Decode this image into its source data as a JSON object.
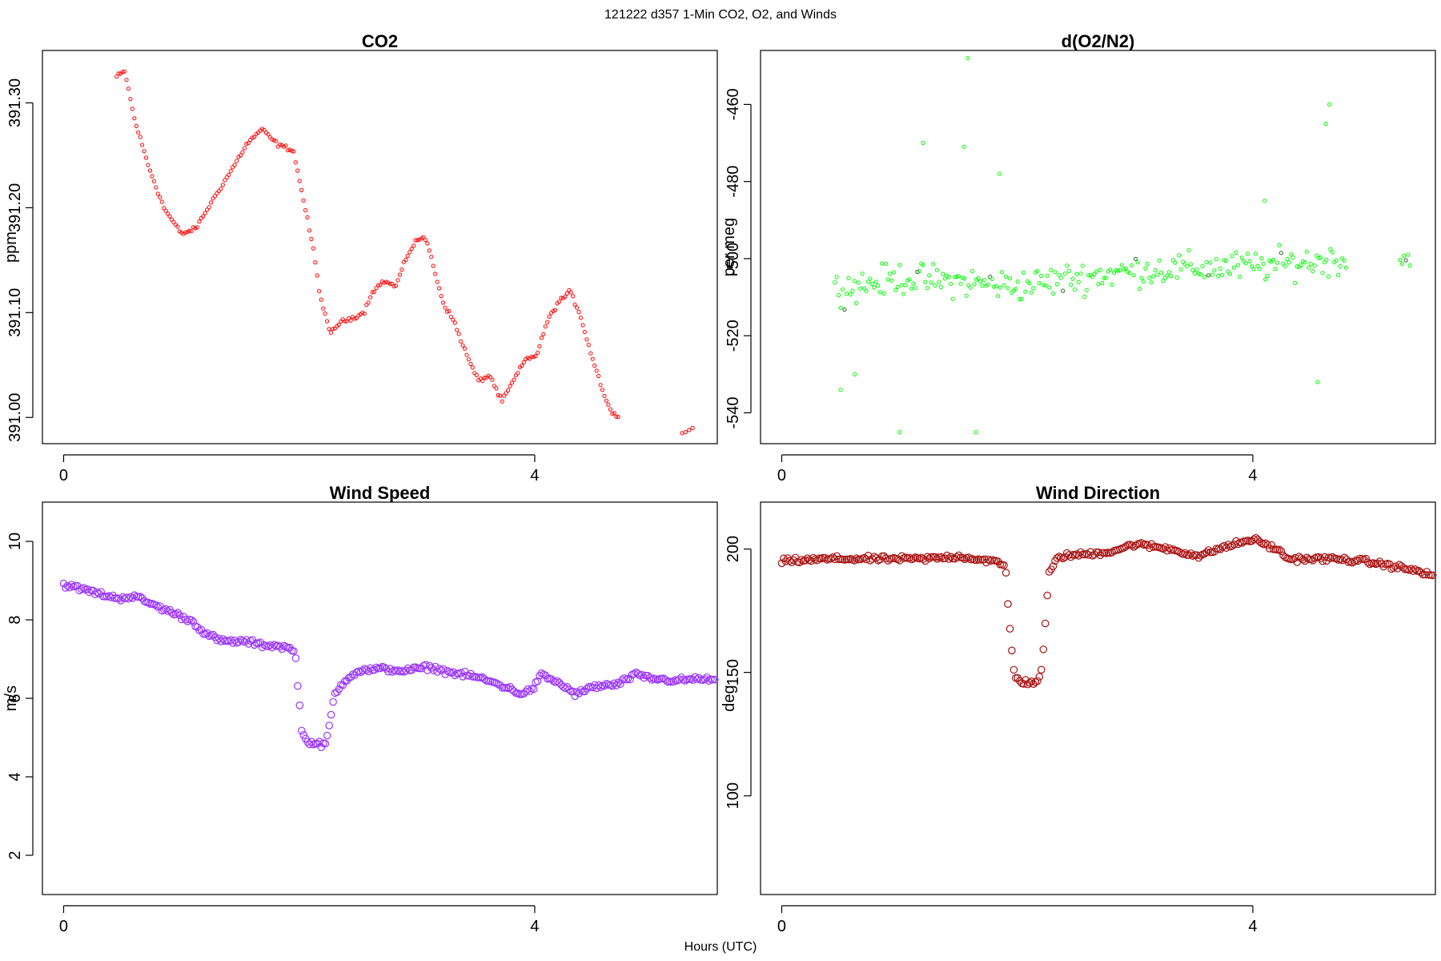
{
  "figure": {
    "suptitle": "121222   d357   1-Min CO2, O2, and Winds",
    "xlabel": "Hours (UTC)"
  },
  "chart_data": [
    {
      "id": "co2",
      "type": "scatter",
      "title": "CO2",
      "ylabel": "ppm",
      "color": "#ff0000",
      "marker": "small-circle",
      "xlim": [
        -0.18,
        5.55
      ],
      "ylim": [
        390.975,
        391.35
      ],
      "xticks": [
        0,
        4
      ],
      "yticks": [
        391.0,
        391.1,
        391.2,
        391.3
      ],
      "ytick_labels": [
        "391.00",
        "391.10",
        "391.20",
        "391.30"
      ],
      "anchors": [
        [
          0.45,
          391.325
        ],
        [
          0.52,
          391.33
        ],
        [
          0.6,
          391.285
        ],
        [
          0.72,
          391.24
        ],
        [
          0.85,
          391.2
        ],
        [
          1.0,
          391.175
        ],
        [
          1.12,
          391.18
        ],
        [
          1.28,
          391.21
        ],
        [
          1.42,
          391.235
        ],
        [
          1.55,
          391.26
        ],
        [
          1.68,
          391.275
        ],
        [
          1.82,
          391.26
        ],
        [
          1.95,
          391.255
        ],
        [
          2.05,
          391.2
        ],
        [
          2.12,
          391.16
        ],
        [
          2.18,
          391.115
        ],
        [
          2.26,
          391.08
        ],
        [
          2.34,
          391.09
        ],
        [
          2.45,
          391.095
        ],
        [
          2.55,
          391.1
        ],
        [
          2.62,
          391.12
        ],
        [
          2.72,
          391.13
        ],
        [
          2.82,
          391.125
        ],
        [
          2.92,
          391.155
        ],
        [
          3.0,
          391.17
        ],
        [
          3.08,
          391.17
        ],
        [
          3.15,
          391.14
        ],
        [
          3.22,
          391.11
        ],
        [
          3.32,
          391.09
        ],
        [
          3.42,
          391.06
        ],
        [
          3.52,
          391.035
        ],
        [
          3.62,
          391.04
        ],
        [
          3.72,
          391.015
        ],
        [
          3.82,
          391.035
        ],
        [
          3.92,
          391.055
        ],
        [
          4.02,
          391.06
        ],
        [
          4.1,
          391.09
        ],
        [
          4.2,
          391.11
        ],
        [
          4.3,
          391.12
        ],
        [
          4.38,
          391.1
        ],
        [
          4.48,
          391.06
        ],
        [
          4.58,
          391.025
        ],
        [
          4.65,
          391.005
        ],
        [
          4.72,
          391.0
        ]
      ],
      "segments": [
        [
          0.45,
          4.72
        ],
        [
          5.25,
          5.35
        ]
      ],
      "gap_points": [
        [
          5.25,
          390.985
        ],
        [
          5.28,
          390.986
        ],
        [
          5.31,
          390.988
        ],
        [
          5.34,
          390.99
        ]
      ],
      "step": 0.0167,
      "noise": 0.003
    },
    {
      "id": "o2",
      "type": "scatter",
      "title": "d(O2/N2)",
      "ylabel": "per meg",
      "color": "#00ff00",
      "marker": "small-circle",
      "xlim": [
        -0.18,
        5.55
      ],
      "ylim": [
        -548,
        -446
      ],
      "xticks": [
        0,
        4
      ],
      "yticks": [
        -540,
        -520,
        -500,
        -480,
        -460
      ],
      "ytick_labels": [
        "-540",
        "-520",
        "-500",
        "-480",
        "-460"
      ],
      "anchors": [
        [
          0.45,
          -508
        ],
        [
          1.0,
          -505
        ],
        [
          2.0,
          -507
        ],
        [
          3.0,
          -503
        ],
        [
          4.0,
          -502
        ],
        [
          4.8,
          -500
        ]
      ],
      "segments": [
        [
          0.45,
          4.8
        ],
        [
          5.25,
          5.35
        ]
      ],
      "step": 0.0167,
      "noise": 6,
      "outliers": [
        [
          1.58,
          -448
        ],
        [
          1.55,
          -471
        ],
        [
          1.2,
          -470
        ],
        [
          1.65,
          -545
        ],
        [
          1.0,
          -545
        ],
        [
          4.65,
          -460
        ],
        [
          4.62,
          -465
        ],
        [
          4.55,
          -532
        ],
        [
          0.5,
          -534
        ],
        [
          0.62,
          -530
        ],
        [
          1.85,
          -478
        ],
        [
          4.1,
          -485
        ]
      ]
    },
    {
      "id": "wind-speed",
      "type": "scatter",
      "title": "Wind Speed",
      "ylabel": "m/s",
      "color": "#9933ff",
      "marker": "circle",
      "xlim": [
        -0.18,
        5.55
      ],
      "ylim": [
        1.0,
        11.0
      ],
      "xticks": [
        0,
        4
      ],
      "yticks": [
        2,
        4,
        6,
        8,
        10
      ],
      "ytick_labels": [
        "2",
        "4",
        "6",
        "8",
        "10"
      ],
      "anchors": [
        [
          0.0,
          8.9
        ],
        [
          0.2,
          8.75
        ],
        [
          0.45,
          8.55
        ],
        [
          0.6,
          8.6
        ],
        [
          0.75,
          8.4
        ],
        [
          0.95,
          8.15
        ],
        [
          1.1,
          7.95
        ],
        [
          1.2,
          7.65
        ],
        [
          1.35,
          7.45
        ],
        [
          1.55,
          7.45
        ],
        [
          1.7,
          7.35
        ],
        [
          1.8,
          7.35
        ],
        [
          1.95,
          7.25
        ],
        [
          1.97,
          7.0
        ],
        [
          1.99,
          6.3
        ],
        [
          2.02,
          5.2
        ],
        [
          2.05,
          4.95
        ],
        [
          2.12,
          4.85
        ],
        [
          2.22,
          4.8
        ],
        [
          2.25,
          5.2
        ],
        [
          2.3,
          6.1
        ],
        [
          2.4,
          6.5
        ],
        [
          2.5,
          6.7
        ],
        [
          2.7,
          6.75
        ],
        [
          2.9,
          6.7
        ],
        [
          3.1,
          6.8
        ],
        [
          3.3,
          6.65
        ],
        [
          3.5,
          6.55
        ],
        [
          3.7,
          6.35
        ],
        [
          3.9,
          6.1
        ],
        [
          4.0,
          6.3
        ],
        [
          4.05,
          6.6
        ],
        [
          4.2,
          6.4
        ],
        [
          4.35,
          6.1
        ],
        [
          4.5,
          6.3
        ],
        [
          4.7,
          6.35
        ],
        [
          4.85,
          6.6
        ],
        [
          5.0,
          6.5
        ],
        [
          5.2,
          6.45
        ],
        [
          5.4,
          6.5
        ],
        [
          5.55,
          6.45
        ]
      ],
      "segments": [
        [
          0.0,
          5.55
        ]
      ],
      "step": 0.0167,
      "noise": 0.1
    },
    {
      "id": "wind-direction",
      "type": "scatter",
      "title": "Wind Direction",
      "ylabel": "deg",
      "color": "#aa1111",
      "marker": "circle",
      "xlim": [
        -0.18,
        5.55
      ],
      "ylim": [
        60,
        219
      ],
      "xticks": [
        0,
        4
      ],
      "yticks": [
        100,
        150,
        200
      ],
      "ytick_labels": [
        "100",
        "150",
        "200"
      ],
      "anchors": [
        [
          0.0,
          195
        ],
        [
          0.4,
          196
        ],
        [
          0.8,
          196
        ],
        [
          1.2,
          196
        ],
        [
          1.5,
          197
        ],
        [
          1.8,
          195
        ],
        [
          1.9,
          193
        ],
        [
          1.92,
          178
        ],
        [
          1.95,
          160
        ],
        [
          1.98,
          148
        ],
        [
          2.05,
          146
        ],
        [
          2.15,
          146
        ],
        [
          2.2,
          148
        ],
        [
          2.23,
          165
        ],
        [
          2.27,
          190
        ],
        [
          2.35,
          197
        ],
        [
          2.6,
          198
        ],
        [
          2.8,
          199
        ],
        [
          3.0,
          202
        ],
        [
          3.3,
          200
        ],
        [
          3.55,
          197
        ],
        [
          3.7,
          200
        ],
        [
          3.85,
          202
        ],
        [
          4.0,
          204
        ],
        [
          4.2,
          200
        ],
        [
          4.3,
          196
        ],
        [
          4.5,
          196
        ],
        [
          4.7,
          196
        ],
        [
          4.95,
          195
        ],
        [
          5.2,
          193
        ],
        [
          5.4,
          191
        ],
        [
          5.55,
          189
        ]
      ],
      "segments": [
        [
          0.0,
          5.55
        ]
      ],
      "step": 0.0167,
      "noise": 1.6
    }
  ]
}
